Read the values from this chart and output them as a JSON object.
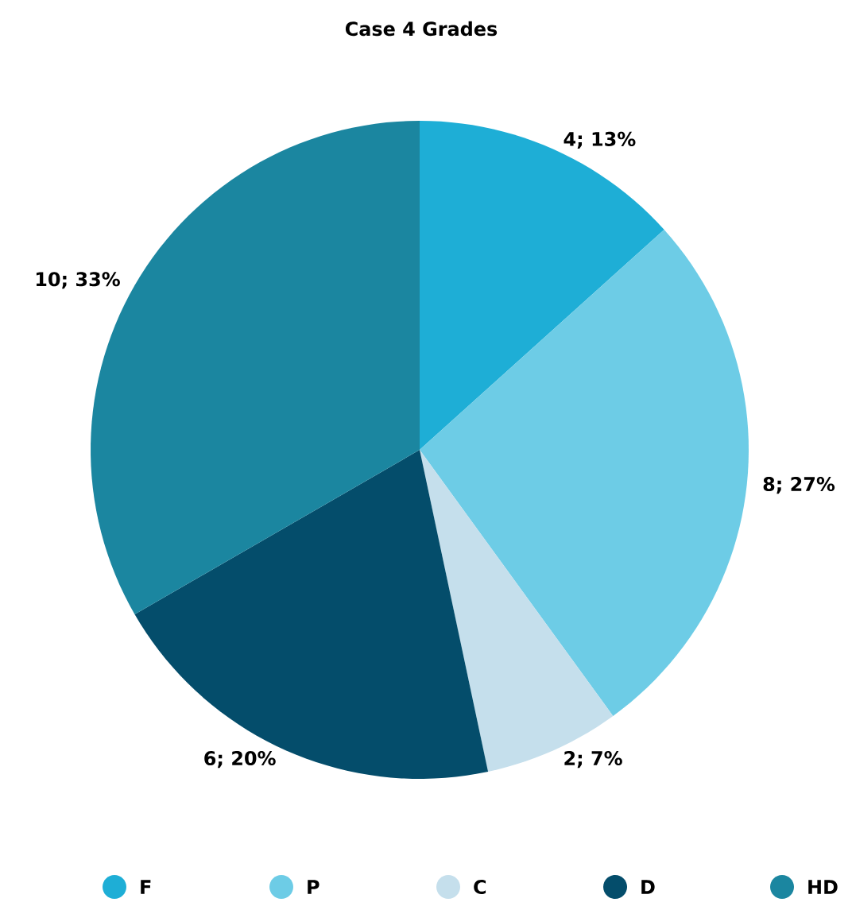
{
  "chart_data": {
    "type": "pie",
    "title": "Case 4 Grades",
    "categories": [
      "F",
      "P",
      "C",
      "D",
      "HD"
    ],
    "values": [
      4,
      8,
      2,
      6,
      10
    ],
    "value_labels": [
      "4; 13%",
      "8; 27%",
      "2; 7%",
      "6; 20%",
      "10; 33%"
    ],
    "colors": [
      "#1eaed6",
      "#6dcce6",
      "#c5dfec",
      "#044d6b",
      "#1b86a0"
    ],
    "legend": "bottom"
  }
}
